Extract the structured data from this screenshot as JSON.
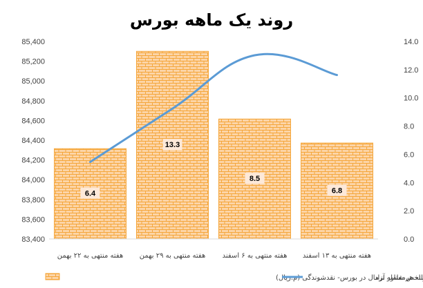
{
  "chart_data": {
    "type": "bar",
    "title": "روند یک ماهه بورس",
    "categories": [
      "هفته منتهی به ۲۲ بهمن",
      "هفته منتهی به ۲۹ بهمن",
      "هفته منتهی به ۶ اسفند",
      "هفته منتهی به ۱۳ اسفند"
    ],
    "series": [
      {
        "name": "متوسط ارزش روزانه هرمعامله نرمال در بورس- نقدشوندگی (م.ریال)",
        "type": "bar",
        "axis": "right",
        "values": [
          6.4,
          13.3,
          8.5,
          6.8
        ],
        "data_labels": [
          "6.4",
          "13.3",
          "8.5",
          "6.8"
        ],
        "color": "#FAC090"
      },
      {
        "name": "شاخص شناور آزاد",
        "type": "line",
        "axis": "left",
        "values": [
          84180,
          84720,
          85260,
          85060
        ],
        "color": "#5B9BD5"
      }
    ],
    "y_left": {
      "ylim": [
        83400,
        85400
      ],
      "ticks": [
        "83,400",
        "83,600",
        "83,800",
        "84,000",
        "84,200",
        "84,400",
        "84,600",
        "84,800",
        "85,000",
        "85,200",
        "85,400"
      ]
    },
    "y_right": {
      "ylim": [
        0,
        14
      ],
      "ticks": [
        "0.0",
        "2.0",
        "4.0",
        "6.0",
        "8.0",
        "10.0",
        "12.0",
        "14.0"
      ]
    },
    "grid": false,
    "legend": "bottom"
  }
}
